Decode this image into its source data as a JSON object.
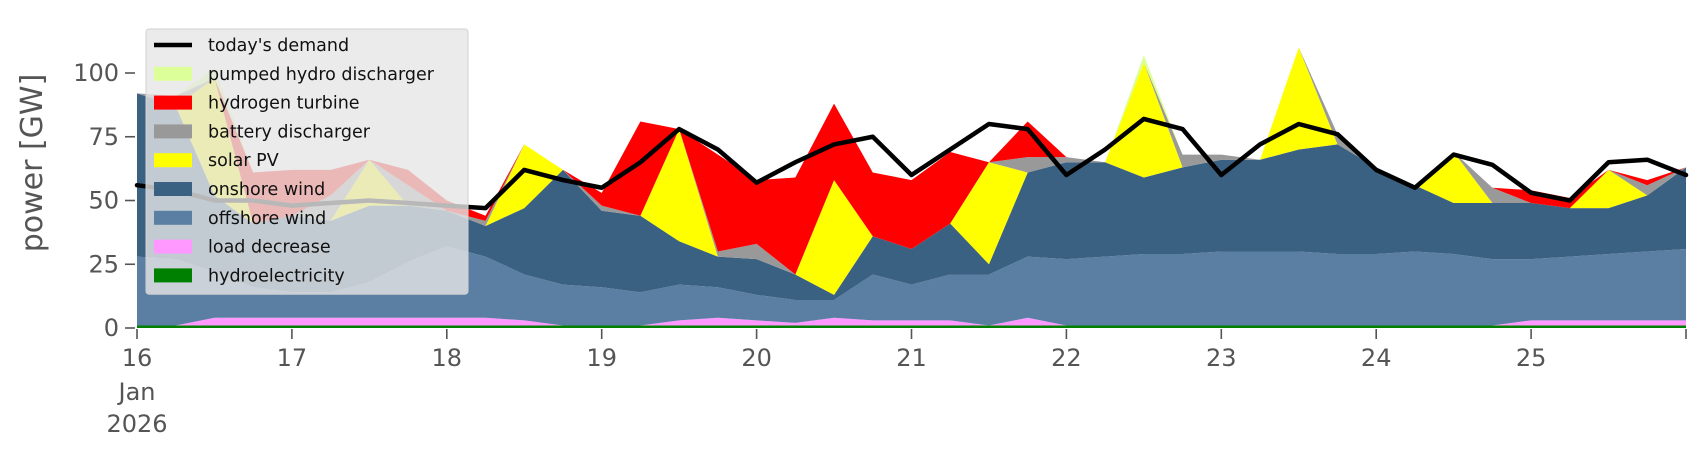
{
  "chart_data": {
    "type": "area",
    "stacked": true,
    "ylabel": "power [GW]",
    "ylim": [
      0,
      120
    ],
    "yticks": [
      0,
      25,
      50,
      75,
      100
    ],
    "ytick_labels": [
      "0",
      "25",
      "50",
      "75",
      "100"
    ],
    "xlim": [
      0,
      10
    ],
    "xticks": [
      0,
      1,
      2,
      3,
      4,
      5,
      6,
      7,
      8,
      9
    ],
    "xtick_labels": [
      "16",
      "17",
      "18",
      "19",
      "20",
      "21",
      "22",
      "23",
      "24",
      "25"
    ],
    "xtick_sub": [
      "Jan",
      "2026"
    ],
    "x_unit": "days since 16 Jan 2026",
    "legend_position": "upper-left",
    "grid": false,
    "x": [
      0,
      0.25,
      0.5,
      0.75,
      1,
      1.25,
      1.5,
      1.75,
      2,
      2.25,
      2.5,
      2.75,
      3,
      3.25,
      3.5,
      3.75,
      4,
      4.25,
      4.5,
      4.75,
      5,
      5.25,
      5.5,
      5.75,
      6,
      6.25,
      6.5,
      6.75,
      7,
      7.25,
      7.5,
      7.75,
      8,
      8.25,
      8.5,
      8.75,
      9,
      9.25,
      9.5,
      9.75,
      10
    ],
    "series": [
      {
        "name": "hydroelectricity",
        "color": "#008000",
        "values": [
          1,
          1,
          1,
          1,
          1,
          1,
          1,
          1,
          1,
          1,
          1,
          1,
          1,
          1,
          1,
          1,
          1,
          1,
          1,
          1,
          1,
          1,
          1,
          1,
          1,
          1,
          1,
          1,
          1,
          1,
          1,
          1,
          1,
          1,
          1,
          1,
          1,
          1,
          1,
          1,
          1
        ]
      },
      {
        "name": "load decrease",
        "color": "#ff99ff",
        "values": [
          0,
          0,
          3,
          3,
          3,
          3,
          3,
          3,
          3,
          3,
          2,
          0,
          0,
          0,
          2,
          3,
          2,
          1,
          3,
          2,
          2,
          2,
          0,
          3,
          0,
          0,
          0,
          0,
          0,
          0,
          0,
          0,
          0,
          0,
          0,
          0,
          2,
          2,
          2,
          2,
          2
        ]
      },
      {
        "name": "offshore wind",
        "color": "#5b7fa3",
        "values": [
          27,
          26,
          18,
          12,
          10,
          10,
          14,
          22,
          28,
          24,
          18,
          16,
          15,
          13,
          14,
          12,
          10,
          9,
          7,
          18,
          14,
          18,
          20,
          24,
          26,
          27,
          28,
          28,
          29,
          29,
          29,
          28,
          28,
          29,
          28,
          26,
          24,
          25,
          26,
          27,
          28
        ]
      },
      {
        "name": "onshore wind",
        "color": "#3b6182",
        "values": [
          64,
          60,
          30,
          25,
          30,
          28,
          30,
          22,
          14,
          12,
          26,
          45,
          30,
          30,
          17,
          12,
          14,
          10,
          2,
          15,
          14,
          20,
          4,
          33,
          38,
          37,
          30,
          34,
          36,
          36,
          40,
          43,
          34,
          26,
          20,
          22,
          22,
          19,
          18,
          22,
          32
        ]
      },
      {
        "name": "solar PV",
        "color": "#ffff00",
        "values": [
          0,
          0,
          46,
          0,
          0,
          0,
          18,
          0,
          0,
          0,
          25,
          0,
          0,
          0,
          44,
          0,
          0,
          0,
          45,
          0,
          0,
          0,
          40,
          0,
          0,
          0,
          45,
          0,
          0,
          0,
          40,
          0,
          0,
          0,
          20,
          0,
          0,
          0,
          15,
          0,
          0
        ]
      },
      {
        "name": "battery discharger",
        "color": "#999999",
        "values": [
          0,
          4,
          0,
          0,
          0,
          10,
          0,
          8,
          0,
          2,
          0,
          0,
          2,
          0,
          0,
          2,
          6,
          0,
          0,
          0,
          0,
          0,
          0,
          6,
          2,
          0,
          0,
          5,
          2,
          0,
          0,
          4,
          0,
          0,
          0,
          6,
          0,
          0,
          0,
          4,
          0
        ]
      },
      {
        "name": "hydrogen turbine",
        "color": "#ff0000",
        "values": [
          0,
          0,
          0,
          20,
          18,
          10,
          0,
          6,
          4,
          2,
          0,
          0,
          5,
          37,
          0,
          38,
          25,
          38,
          30,
          25,
          27,
          28,
          0,
          14,
          0,
          0,
          0,
          0,
          0,
          0,
          0,
          0,
          0,
          0,
          0,
          0,
          5,
          4,
          0,
          2,
          0
        ]
      },
      {
        "name": "pumped hydro discharger",
        "color": "#ddff99",
        "values": [
          0,
          0,
          4,
          0,
          0,
          0,
          0,
          0,
          0,
          0,
          0,
          0,
          0,
          0,
          0,
          0,
          0,
          0,
          0,
          0,
          0,
          0,
          0,
          0,
          0,
          0,
          3,
          0,
          0,
          0,
          0,
          0,
          0,
          0,
          0,
          0,
          0,
          0,
          0,
          0,
          0
        ]
      }
    ],
    "demand": {
      "name": "today's demand",
      "color": "#000000",
      "values": [
        56,
        54,
        50,
        50,
        48,
        49,
        50,
        49,
        48,
        47,
        62,
        58,
        55,
        65,
        78,
        70,
        57,
        65,
        72,
        75,
        60,
        70,
        80,
        78,
        60,
        70,
        82,
        78,
        60,
        72,
        80,
        76,
        62,
        55,
        68,
        64,
        53,
        50,
        65,
        66,
        60
      ]
    },
    "legend_entries": [
      "today's demand",
      "pumped hydro discharger",
      "hydrogen turbine",
      "battery discharger",
      "solar PV",
      "onshore wind",
      "offshore wind",
      "load decrease",
      "hydroelectricity"
    ]
  }
}
